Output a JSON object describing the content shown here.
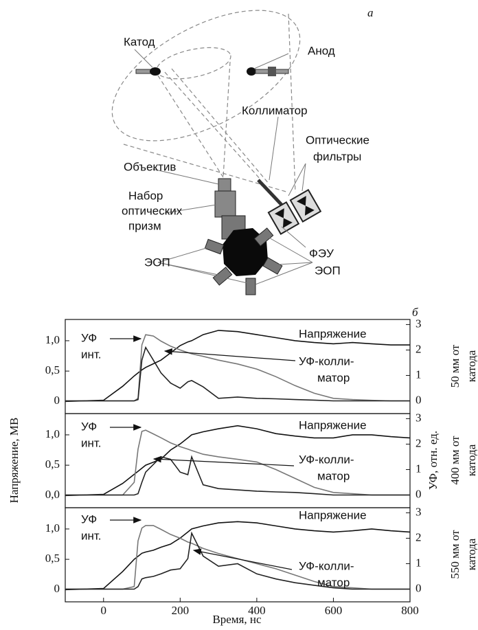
{
  "diagram": {
    "panel_label": "а",
    "labels": {
      "cathode": "Катод",
      "anode": "Анод",
      "collimator": "Коллиматор",
      "filters": [
        "Оптические",
        "фильтры"
      ],
      "objective": "Объектив",
      "prisms": [
        "Набор",
        "оптических",
        "призм"
      ],
      "converter_left": "ЭОП",
      "pmt": "ФЭУ",
      "converter_right": "ЭОП"
    }
  },
  "figure": {
    "panel_label": "б",
    "ylabel": "Напряжение, МВ",
    "y2label": "УФ, отн. ед.",
    "xlabel": "Время, нс"
  },
  "chart_data": [
    {
      "type": "line",
      "xlim": [
        -100,
        800
      ],
      "ylim": [
        -0.2,
        1.35
      ],
      "y2lim": [
        -0.5,
        3.2
      ],
      "yticks": [
        0,
        {
          "value": 0.5,
          "label": "0,5"
        },
        {
          "value": 1,
          "label": "1,0"
        }
      ],
      "y2ticks": [
        0,
        1,
        2,
        3
      ],
      "annotations": [
        "Напряжение",
        "УФ",
        "инт.",
        "УФ-колли-",
        "матор"
      ],
      "side_label": [
        "50 мм от",
        "катода"
      ],
      "x": [
        -100,
        0,
        50,
        80,
        90,
        100,
        110,
        130,
        150,
        175,
        200,
        220,
        230,
        260,
        300,
        350,
        400,
        450,
        500,
        550,
        600,
        650,
        700,
        750,
        800
      ],
      "series": [
        {
          "color": "#111111",
          "values": [
            0,
            0.02,
            0.25,
            0.42,
            0.47,
            0.52,
            0.56,
            0.62,
            0.68,
            0.8,
            0.92,
            0.98,
            1.0,
            1.1,
            1.17,
            1.15,
            1.1,
            1.05,
            1.0,
            0.97,
            0.95,
            0.97,
            0.95,
            0.93,
            0.93
          ]
        },
        {
          "color": "#777777",
          "axis": "y2",
          "values": [
            0,
            0,
            0,
            0,
            0.1,
            2.2,
            2.6,
            2.55,
            2.35,
            2.15,
            2.0,
            1.9,
            1.85,
            1.75,
            1.6,
            1.45,
            1.25,
            0.95,
            0.6,
            0.3,
            0.1,
            0.05,
            0.02,
            0,
            0
          ]
        },
        {
          "color": "#222222",
          "axis": "y2",
          "values": [
            0,
            0,
            0,
            0,
            0.05,
            1.6,
            2.1,
            1.6,
            1.1,
            0.7,
            0.5,
            0.75,
            0.8,
            0.55,
            0.1,
            0.15,
            0.1,
            0.08,
            0.05,
            0.03,
            0,
            0,
            0,
            0,
            0
          ]
        }
      ]
    },
    {
      "type": "line",
      "xlim": [
        -100,
        800
      ],
      "ylim": [
        -0.2,
        1.35
      ],
      "y2lim": [
        -0.5,
        3.2
      ],
      "yticks": [
        {
          "value": 0,
          "label": "0,0"
        },
        {
          "value": 0.5,
          "label": "0,5"
        },
        {
          "value": 1,
          "label": "1,0"
        }
      ],
      "y2ticks": [
        0,
        1,
        2,
        3
      ],
      "annotations": [
        "Напряжение",
        "УФ",
        "инт.",
        "УФ-колли-",
        "матор"
      ],
      "side_label": [
        "400 мм от",
        "катода"
      ],
      "x": [
        -100,
        0,
        50,
        80,
        90,
        100,
        110,
        130,
        150,
        175,
        200,
        220,
        230,
        260,
        300,
        350,
        400,
        450,
        500,
        550,
        600,
        650,
        700,
        750,
        800
      ],
      "series": [
        {
          "color": "#111111",
          "values": [
            0,
            0.02,
            0.2,
            0.35,
            0.4,
            0.45,
            0.5,
            0.55,
            0.6,
            0.75,
            0.85,
            0.95,
            1.0,
            1.05,
            1.1,
            1.15,
            1.1,
            1.02,
            0.98,
            0.95,
            0.95,
            1.0,
            1.0,
            0.97,
            0.95
          ]
        },
        {
          "color": "#777777",
          "axis": "y2",
          "values": [
            0,
            0,
            0,
            0.5,
            1.8,
            2.5,
            2.55,
            2.4,
            2.25,
            2.05,
            1.9,
            1.8,
            1.75,
            1.6,
            1.5,
            1.4,
            1.3,
            1.0,
            0.65,
            0.3,
            0.1,
            0.05,
            0,
            0,
            0
          ]
        },
        {
          "color": "#222222",
          "axis": "y2",
          "values": [
            0,
            0,
            0,
            0,
            0.05,
            0.5,
            0.9,
            1.2,
            1.5,
            1.4,
            0.9,
            0.8,
            1.5,
            0.4,
            0.25,
            0.2,
            0.15,
            0.12,
            0.1,
            0.05,
            0,
            0,
            0,
            0,
            0
          ]
        }
      ]
    },
    {
      "type": "line",
      "xlim": [
        -100,
        800
      ],
      "ylim": [
        -0.2,
        1.35
      ],
      "y2lim": [
        -0.5,
        3.2
      ],
      "xticks": [
        0,
        200,
        400,
        600,
        800
      ],
      "yticks": [
        0,
        {
          "value": 0.5,
          "label": "0,5"
        },
        {
          "value": 1,
          "label": "1,0"
        }
      ],
      "y2ticks": [
        0,
        1,
        2,
        3
      ],
      "annotations": [
        "Напряжение",
        "УФ",
        "инт.",
        "УФ-колли-",
        "матор"
      ],
      "side_label": [
        "550 мм от",
        "катода"
      ],
      "x": [
        -100,
        0,
        50,
        80,
        90,
        100,
        110,
        130,
        150,
        175,
        200,
        220,
        230,
        260,
        300,
        350,
        400,
        450,
        500,
        550,
        600,
        650,
        700,
        750,
        800
      ],
      "series": [
        {
          "color": "#111111",
          "values": [
            0,
            0.02,
            0.3,
            0.5,
            0.55,
            0.6,
            0.62,
            0.65,
            0.7,
            0.75,
            0.85,
            0.95,
            1.0,
            1.05,
            1.1,
            1.12,
            1.1,
            1.05,
            1.0,
            0.97,
            0.95,
            0.97,
            1.0,
            0.97,
            0.95
          ]
        },
        {
          "color": "#777777",
          "axis": "y2",
          "values": [
            0,
            0,
            0,
            0.1,
            1.9,
            2.4,
            2.5,
            2.5,
            2.35,
            2.15,
            2.0,
            1.85,
            1.8,
            1.6,
            1.4,
            1.2,
            1.0,
            0.8,
            0.55,
            0.3,
            0.1,
            0.05,
            0,
            0,
            0
          ]
        },
        {
          "color": "#222222",
          "axis": "y2",
          "values": [
            0,
            0,
            0,
            0,
            0.1,
            0.4,
            0.45,
            0.5,
            0.6,
            0.75,
            0.8,
            1.2,
            2.2,
            1.3,
            0.9,
            1.0,
            0.6,
            0.4,
            0.25,
            0.15,
            0.05,
            0,
            0,
            0,
            0
          ]
        }
      ]
    }
  ]
}
